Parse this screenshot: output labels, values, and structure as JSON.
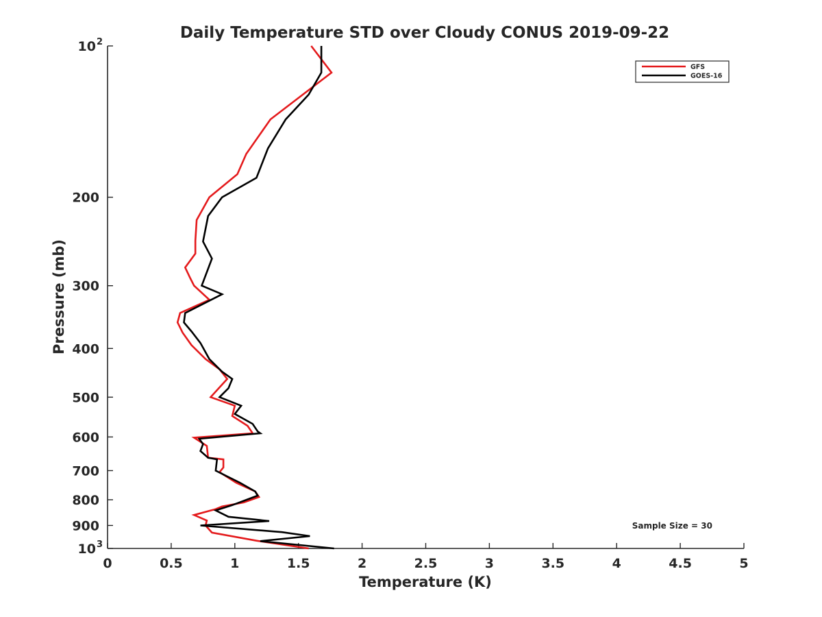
{
  "chart_data": {
    "type": "line",
    "title": "Daily Temperature STD over Cloudy CONUS 2019-09-22",
    "xlabel": "Temperature (K)",
    "ylabel": "Pressure (mb)",
    "xlim": [
      0,
      5
    ],
    "ylim": [
      100,
      1000
    ],
    "y_scale": "log",
    "y_reversed": true,
    "grid": false,
    "legend_position": "top-right",
    "x_ticks": [
      0,
      0.5,
      1,
      1.5,
      2,
      2.5,
      3,
      3.5,
      4,
      4.5,
      5
    ],
    "x_tick_labels": [
      "0",
      "0.5",
      "1",
      "1.5",
      "2",
      "2.5",
      "3",
      "3.5",
      "4",
      "4.5",
      "5"
    ],
    "y_ticks": [
      {
        "value": 100,
        "label": "10",
        "exp": "2"
      },
      {
        "value": 200,
        "label": "200",
        "exp": ""
      },
      {
        "value": 300,
        "label": "300",
        "exp": ""
      },
      {
        "value": 400,
        "label": "400",
        "exp": ""
      },
      {
        "value": 500,
        "label": "500",
        "exp": ""
      },
      {
        "value": 600,
        "label": "600",
        "exp": ""
      },
      {
        "value": 700,
        "label": "700",
        "exp": ""
      },
      {
        "value": 800,
        "label": "800",
        "exp": ""
      },
      {
        "value": 900,
        "label": "900",
        "exp": ""
      },
      {
        "value": 1000,
        "label": "10",
        "exp": "3"
      }
    ],
    "annotation": "Sample Size = 30",
    "series": [
      {
        "name": "GFS",
        "color": "#e41a1c",
        "points": [
          [
            1.6,
            100
          ],
          [
            1.76,
            113
          ],
          [
            1.28,
            140
          ],
          [
            1.09,
            164
          ],
          [
            1.02,
            180
          ],
          [
            0.8,
            200
          ],
          [
            0.7,
            222
          ],
          [
            0.69,
            244
          ],
          [
            0.69,
            259
          ],
          [
            0.61,
            276
          ],
          [
            0.65,
            290
          ],
          [
            0.68,
            300
          ],
          [
            0.8,
            320
          ],
          [
            0.57,
            340
          ],
          [
            0.55,
            355
          ],
          [
            0.59,
            372
          ],
          [
            0.66,
            394
          ],
          [
            0.77,
            420
          ],
          [
            0.88,
            440
          ],
          [
            0.94,
            460
          ],
          [
            0.81,
            500
          ],
          [
            1.0,
            520
          ],
          [
            0.98,
            545
          ],
          [
            1.1,
            570
          ],
          [
            1.14,
            590
          ],
          [
            0.68,
            602
          ],
          [
            0.78,
            625
          ],
          [
            0.79,
            660
          ],
          [
            0.91,
            665
          ],
          [
            0.91,
            690
          ],
          [
            0.88,
            705
          ],
          [
            1.01,
            740
          ],
          [
            1.16,
            770
          ],
          [
            1.19,
            790
          ],
          [
            1.07,
            810
          ],
          [
            0.9,
            825
          ],
          [
            0.85,
            835
          ],
          [
            0.68,
            858
          ],
          [
            0.78,
            880
          ],
          [
            0.77,
            900
          ],
          [
            0.82,
            930
          ],
          [
            1.17,
            965
          ],
          [
            1.58,
            1000
          ]
        ]
      },
      {
        "name": "GOES-16",
        "color": "#000000",
        "points": [
          [
            1.68,
            100
          ],
          [
            1.68,
            113
          ],
          [
            1.58,
            125
          ],
          [
            1.4,
            140
          ],
          [
            1.26,
            160
          ],
          [
            1.17,
            183
          ],
          [
            0.9,
            200
          ],
          [
            0.79,
            218
          ],
          [
            0.75,
            245
          ],
          [
            0.82,
            265
          ],
          [
            0.74,
            300
          ],
          [
            0.9,
            312
          ],
          [
            0.61,
            340
          ],
          [
            0.6,
            355
          ],
          [
            0.66,
            370
          ],
          [
            0.73,
            390
          ],
          [
            0.8,
            420
          ],
          [
            0.9,
            445
          ],
          [
            0.98,
            460
          ],
          [
            0.95,
            480
          ],
          [
            0.88,
            500
          ],
          [
            1.05,
            520
          ],
          [
            1.0,
            540
          ],
          [
            1.14,
            565
          ],
          [
            1.18,
            585
          ],
          [
            1.2,
            590
          ],
          [
            0.72,
            605
          ],
          [
            0.75,
            620
          ],
          [
            0.73,
            640
          ],
          [
            0.79,
            660
          ],
          [
            0.86,
            665
          ],
          [
            0.85,
            700
          ],
          [
            1.04,
            740
          ],
          [
            1.16,
            770
          ],
          [
            1.18,
            785
          ],
          [
            0.98,
            820
          ],
          [
            0.85,
            840
          ],
          [
            0.95,
            865
          ],
          [
            1.27,
            882
          ],
          [
            0.73,
            900
          ],
          [
            1.37,
            928
          ],
          [
            1.59,
            945
          ],
          [
            1.2,
            967
          ],
          [
            1.78,
            1000
          ]
        ]
      }
    ]
  }
}
